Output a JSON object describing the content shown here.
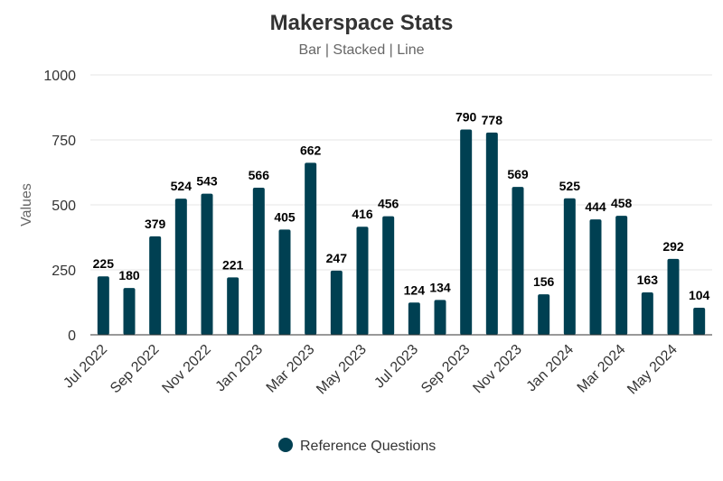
{
  "chart_data": {
    "type": "bar",
    "title": "Makerspace Stats",
    "subtitle": "Bar | Stacked | Line",
    "xlabel": "",
    "ylabel": "Values",
    "ylim": [
      0,
      1000
    ],
    "yticks": [
      0,
      250,
      500,
      750,
      1000
    ],
    "grid": true,
    "legend_position": "bottom-center",
    "categories": [
      "Jul 2022",
      "Aug 2022",
      "Sep 2022",
      "Oct 2022",
      "Nov 2022",
      "Dec 2022",
      "Jan 2023",
      "Feb 2023",
      "Mar 2023",
      "Apr 2023",
      "May 2023",
      "Jun 2023",
      "Jul 2023",
      "Aug 2023",
      "Sep 2023",
      "Oct 2023",
      "Nov 2023",
      "Dec 2023",
      "Jan 2024",
      "Feb 2024",
      "Mar 2024",
      "Apr 2024",
      "May 2024",
      "Jun 2024"
    ],
    "shown_tick_labels": [
      "Jul 2022",
      "Sep 2022",
      "Nov 2022",
      "Jan 2023",
      "Mar 2023",
      "May 2023",
      "Jul 2023",
      "Sep 2023",
      "Nov 2023",
      "Jan 2024",
      "Mar 2024",
      "May 2024"
    ],
    "series": [
      {
        "name": "Reference Questions",
        "color": "#004052",
        "values": [
          225,
          180,
          379,
          524,
          543,
          221,
          566,
          405,
          662,
          247,
          416,
          456,
          124,
          134,
          790,
          778,
          569,
          156,
          525,
          444,
          458,
          163,
          292,
          104
        ]
      }
    ]
  }
}
